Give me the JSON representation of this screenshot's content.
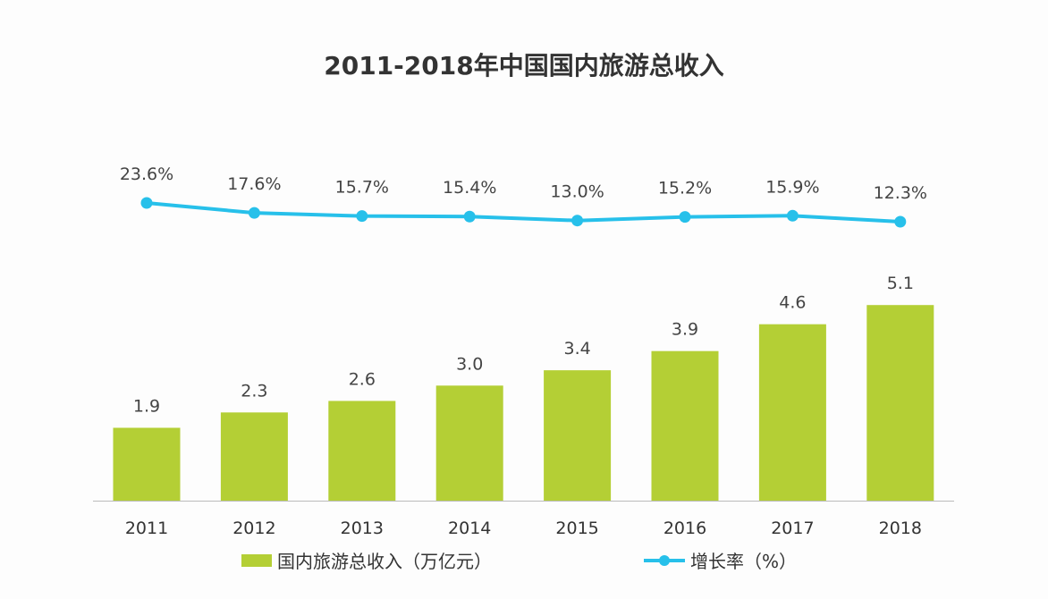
{
  "chart_data": {
    "type": "bar+line",
    "title": "2011-2018年中国国内旅游总收入",
    "categories": [
      "2011",
      "2012",
      "2013",
      "2014",
      "2015",
      "2016",
      "2017",
      "2018"
    ],
    "series": [
      {
        "name": "国内旅游总收入（万亿元）",
        "type": "bar",
        "values": [
          1.9,
          2.3,
          2.6,
          3.0,
          3.4,
          3.9,
          4.6,
          5.1
        ],
        "labels": [
          "1.9",
          "2.3",
          "2.6",
          "3.0",
          "3.4",
          "3.9",
          "4.6",
          "5.1"
        ],
        "color": "#b4cf35"
      },
      {
        "name": "增长率（%）",
        "type": "line",
        "values": [
          23.6,
          17.6,
          15.7,
          15.4,
          13.0,
          15.2,
          15.9,
          12.3
        ],
        "labels": [
          "23.6%",
          "17.6%",
          "15.7%",
          "15.4%",
          "13.0%",
          "15.2%",
          "15.9%",
          "12.3%"
        ],
        "color": "#27c0ea"
      }
    ],
    "grid": false,
    "legend_position": "bottom"
  }
}
